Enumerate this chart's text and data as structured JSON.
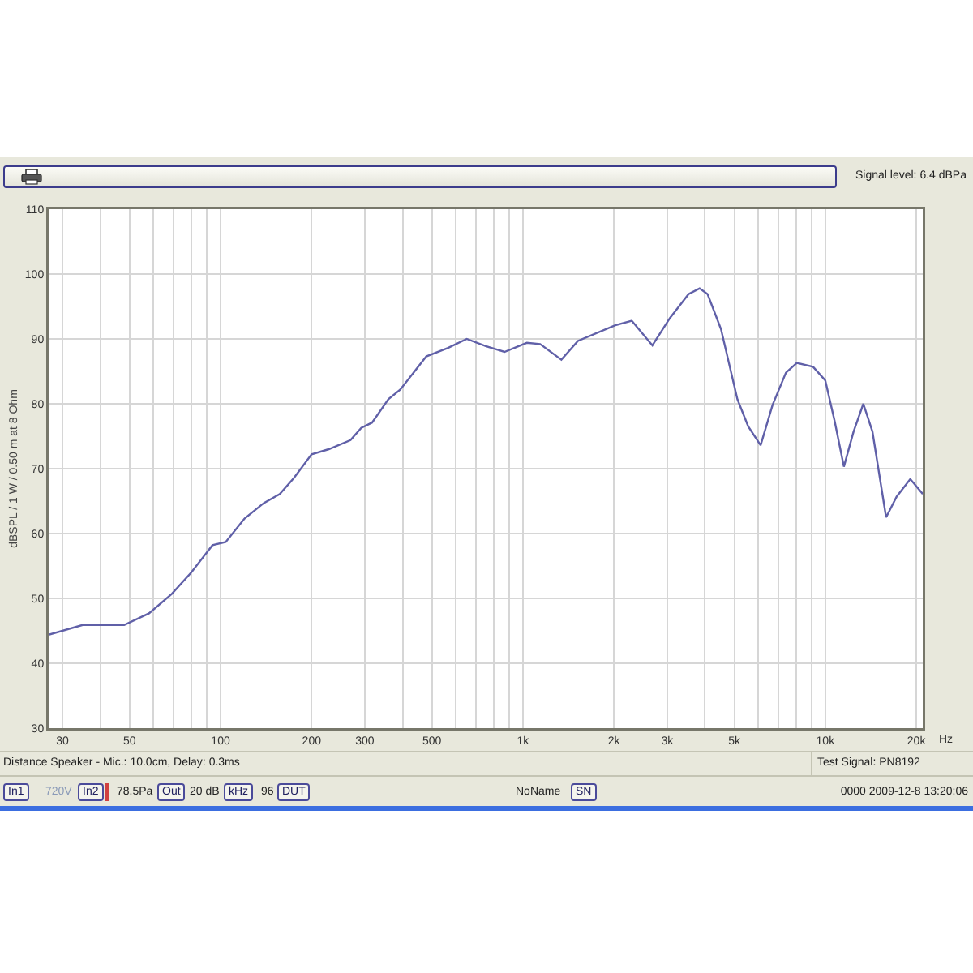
{
  "chart_data": {
    "type": "line",
    "xlabel": "Hz",
    "ylabel": "dBSPL / 1 W / 0.50 m at 8 Ohm",
    "x": [
      27,
      35,
      48,
      58,
      69,
      80,
      94,
      104,
      120,
      139,
      157,
      175,
      200,
      228,
      269,
      292,
      317,
      359,
      393,
      479,
      565,
      652,
      753,
      869,
      1030,
      1140,
      1340,
      1520,
      2020,
      2290,
      2680,
      3060,
      3530,
      3840,
      4080,
      4520,
      5120,
      5560,
      6110,
      6690,
      7410,
      8050,
      9110,
      10000,
      10740,
      11520,
      12400,
      13360,
      14320,
      15890,
      17220,
      19100,
      21000
    ],
    "series": [
      {
        "color": "#6060a8",
        "values": [
          44.4,
          45.9,
          45.9,
          47.7,
          50.7,
          54,
          58.2,
          58.7,
          62.3,
          64.7,
          66.1,
          68.6,
          72.2,
          73,
          74.4,
          76.3,
          77.1,
          80.7,
          82.2,
          87.3,
          88.6,
          90,
          88.9,
          88,
          89.4,
          89.2,
          86.8,
          89.7,
          92.1,
          92.8,
          89,
          93.2,
          96.9,
          97.8,
          96.9,
          91.5,
          80.7,
          76.5,
          73.6,
          79.8,
          84.8,
          86.3,
          85.7,
          83.6,
          77.3,
          70.3,
          75.7,
          80,
          75.7,
          62.5,
          65.7,
          68.4,
          66.1
        ]
      }
    ],
    "log": "x",
    "xlim": [
      27,
      21000
    ],
    "ylim": [
      30,
      110
    ],
    "xticks": [
      30,
      {
        "value": 40,
        "label": null
      },
      50,
      {
        "value": 60,
        "label": null
      },
      {
        "value": 70,
        "label": null
      },
      {
        "value": 80,
        "label": null
      },
      {
        "value": 90,
        "label": null
      },
      100,
      200,
      300,
      {
        "value": 400,
        "label": null
      },
      500,
      {
        "value": 600,
        "label": null
      },
      {
        "value": 700,
        "label": null
      },
      {
        "value": 800,
        "label": null
      },
      {
        "value": 900,
        "label": null
      },
      {
        "value": 1000,
        "label": "1k"
      },
      {
        "value": 2000,
        "label": "2k"
      },
      {
        "value": 3000,
        "label": "3k"
      },
      {
        "value": 4000,
        "label": null
      },
      {
        "value": 5000,
        "label": "5k"
      },
      {
        "value": 6000,
        "label": null
      },
      {
        "value": 7000,
        "label": null
      },
      {
        "value": 8000,
        "label": null
      },
      {
        "value": 9000,
        "label": null
      },
      {
        "value": 10000,
        "label": "10k"
      },
      {
        "value": 20000,
        "label": "20k"
      }
    ],
    "yticks": [
      30,
      40,
      50,
      60,
      70,
      80,
      90,
      100,
      110
    ],
    "grid": true,
    "annotations": [
      "Signal level:  6.4 dBPa",
      "Distance Speaker - Mic.: 10.0cm, Delay: 0.3ms",
      "Test Signal: PN8192",
      "In1",
      "720V",
      "In2",
      "78.5Pa",
      "Out",
      "20 dB",
      "kHz",
      "96",
      "DUT",
      "NoName",
      "SN",
      "0000 2009-12-8  13:20:06"
    ]
  }
}
